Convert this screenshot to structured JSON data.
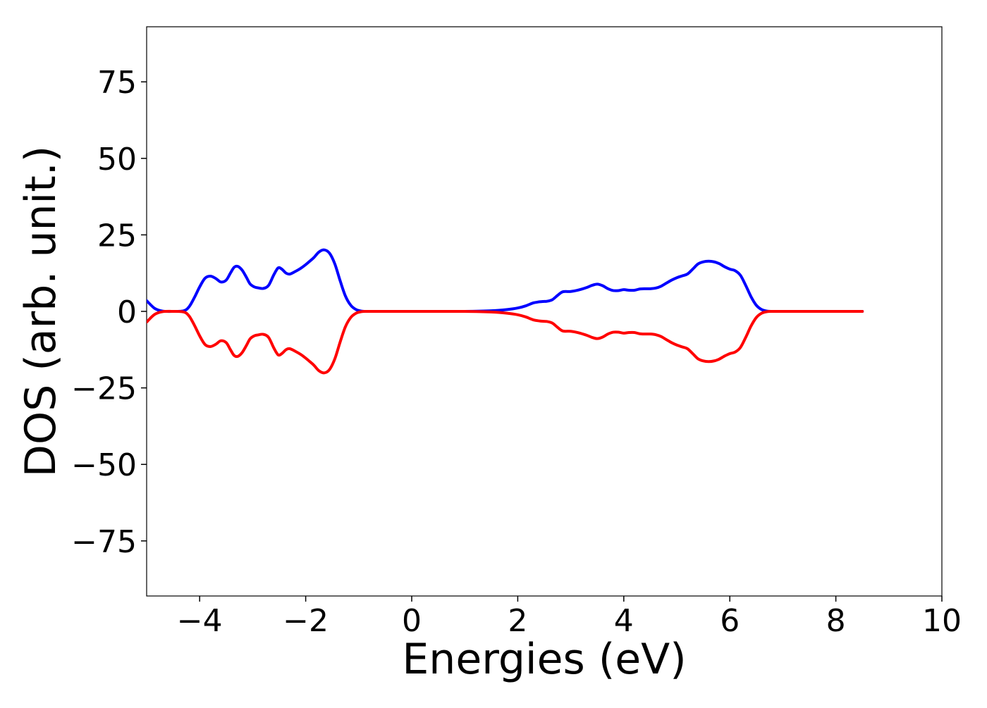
{
  "chart_data": {
    "type": "line",
    "xlabel": "Energies (eV)",
    "ylabel": "DOS (arb. unit.)",
    "xlim": [
      -5,
      10
    ],
    "ylim": [
      -93,
      93
    ],
    "xticks": [
      -4,
      -2,
      0,
      2,
      4,
      6,
      8,
      10
    ],
    "xtick_labels": [
      "−4",
      "−2",
      "0",
      "2",
      "4",
      "6",
      "8",
      "10"
    ],
    "yticks": [
      75,
      50,
      25,
      0,
      -25,
      -50,
      -75
    ],
    "ytick_labels": [
      "75",
      "50",
      "25",
      "0",
      "−25",
      "−50",
      "−75"
    ],
    "grid": false,
    "series": [
      {
        "color": "#0000ff",
        "x": [
          -5.0,
          -4.85,
          -4.7,
          -4.5,
          -4.3,
          -4.2,
          -4.1,
          -4.0,
          -3.9,
          -3.8,
          -3.7,
          -3.6,
          -3.5,
          -3.42,
          -3.35,
          -3.28,
          -3.2,
          -3.12,
          -3.05,
          -2.97,
          -2.9,
          -2.8,
          -2.7,
          -2.6,
          -2.52,
          -2.45,
          -2.37,
          -2.3,
          -2.2,
          -2.1,
          -2.02,
          -1.95,
          -1.85,
          -1.75,
          -1.65,
          -1.55,
          -1.45,
          -1.35,
          -1.25,
          -1.15,
          -1.05,
          -0.95,
          -0.85,
          -0.75,
          -0.65,
          -0.55,
          -0.4,
          0.0,
          0.5,
          1.0,
          1.5,
          1.8,
          2.0,
          2.15,
          2.3,
          2.45,
          2.55,
          2.65,
          2.75,
          2.85,
          3.0,
          3.15,
          3.3,
          3.4,
          3.5,
          3.6,
          3.7,
          3.8,
          3.9,
          4.0,
          4.1,
          4.2,
          4.3,
          4.4,
          4.5,
          4.6,
          4.7,
          4.8,
          4.9,
          5.0,
          5.1,
          5.2,
          5.3,
          5.4,
          5.5,
          5.6,
          5.7,
          5.8,
          5.9,
          6.0,
          6.1,
          6.2,
          6.3,
          6.4,
          6.5,
          6.6,
          6.7,
          6.8,
          7.0,
          7.5,
          8.0,
          8.5
        ],
        "y": [
          3.5,
          1.0,
          0.1,
          0.0,
          0.2,
          1.5,
          4.5,
          8.0,
          10.8,
          11.5,
          10.8,
          9.6,
          10.2,
          12.5,
          14.4,
          14.7,
          13.5,
          11.2,
          9.0,
          8.0,
          7.7,
          7.5,
          8.5,
          12.0,
          14.2,
          13.8,
          12.5,
          12.2,
          13.0,
          14.0,
          15.0,
          16.0,
          17.5,
          19.4,
          20.1,
          19.0,
          15.5,
          10.0,
          5.0,
          2.0,
          0.6,
          0.1,
          0.0,
          0.0,
          0.0,
          0.0,
          0.0,
          0.0,
          0.0,
          0.0,
          0.2,
          0.6,
          1.1,
          1.8,
          2.8,
          3.2,
          3.3,
          3.8,
          5.2,
          6.4,
          6.5,
          7.0,
          7.8,
          8.5,
          8.9,
          8.4,
          7.4,
          6.8,
          6.8,
          7.1,
          6.9,
          6.9,
          7.3,
          7.4,
          7.4,
          7.6,
          8.2,
          9.2,
          10.2,
          11.0,
          11.6,
          12.2,
          13.8,
          15.5,
          16.2,
          16.4,
          16.2,
          15.6,
          14.6,
          13.8,
          13.3,
          11.8,
          8.5,
          4.8,
          2.0,
          0.6,
          0.1,
          0.0,
          0.0,
          0.0,
          0.0,
          0.0
        ]
      },
      {
        "color": "#ff0000",
        "x": [
          -5.0,
          -4.85,
          -4.7,
          -4.5,
          -4.3,
          -4.2,
          -4.1,
          -4.0,
          -3.9,
          -3.8,
          -3.7,
          -3.6,
          -3.5,
          -3.42,
          -3.35,
          -3.28,
          -3.2,
          -3.12,
          -3.05,
          -2.97,
          -2.9,
          -2.8,
          -2.7,
          -2.6,
          -2.52,
          -2.45,
          -2.37,
          -2.3,
          -2.2,
          -2.1,
          -2.02,
          -1.95,
          -1.85,
          -1.75,
          -1.65,
          -1.55,
          -1.45,
          -1.35,
          -1.25,
          -1.15,
          -1.05,
          -0.95,
          -0.85,
          -0.75,
          -0.65,
          -0.55,
          -0.4,
          0.0,
          0.5,
          1.0,
          1.5,
          1.8,
          2.0,
          2.15,
          2.3,
          2.45,
          2.55,
          2.65,
          2.75,
          2.85,
          3.0,
          3.15,
          3.3,
          3.4,
          3.5,
          3.6,
          3.7,
          3.8,
          3.9,
          4.0,
          4.1,
          4.2,
          4.3,
          4.4,
          4.5,
          4.6,
          4.7,
          4.8,
          4.9,
          5.0,
          5.1,
          5.2,
          5.3,
          5.4,
          5.5,
          5.6,
          5.7,
          5.8,
          5.9,
          6.0,
          6.1,
          6.2,
          6.3,
          6.4,
          6.5,
          6.6,
          6.7,
          6.8,
          7.0,
          7.5,
          8.0,
          8.5
        ],
        "y": [
          -3.5,
          -1.0,
          -0.1,
          0.0,
          -0.2,
          -1.5,
          -4.5,
          -8.0,
          -10.8,
          -11.5,
          -10.8,
          -9.6,
          -10.2,
          -12.5,
          -14.4,
          -14.7,
          -13.5,
          -11.2,
          -9.0,
          -8.0,
          -7.7,
          -7.5,
          -8.5,
          -12.0,
          -14.2,
          -13.8,
          -12.5,
          -12.2,
          -13.0,
          -14.0,
          -15.0,
          -16.0,
          -17.5,
          -19.4,
          -20.1,
          -19.0,
          -15.5,
          -10.0,
          -5.0,
          -2.0,
          -0.6,
          -0.1,
          0.0,
          0.0,
          0.0,
          0.0,
          0.0,
          0.0,
          0.0,
          0.0,
          -0.2,
          -0.6,
          -1.1,
          -1.8,
          -2.8,
          -3.2,
          -3.3,
          -3.8,
          -5.2,
          -6.4,
          -6.5,
          -7.0,
          -7.8,
          -8.5,
          -8.9,
          -8.4,
          -7.4,
          -6.8,
          -6.8,
          -7.1,
          -6.9,
          -6.9,
          -7.3,
          -7.4,
          -7.4,
          -7.6,
          -8.2,
          -9.2,
          -10.2,
          -11.0,
          -11.6,
          -12.2,
          -13.8,
          -15.5,
          -16.2,
          -16.4,
          -16.2,
          -15.6,
          -14.6,
          -13.8,
          -13.3,
          -11.8,
          -8.5,
          -4.8,
          -2.0,
          -0.6,
          -0.1,
          0.0,
          0.0,
          0.0,
          0.0,
          0.0
        ]
      }
    ]
  }
}
